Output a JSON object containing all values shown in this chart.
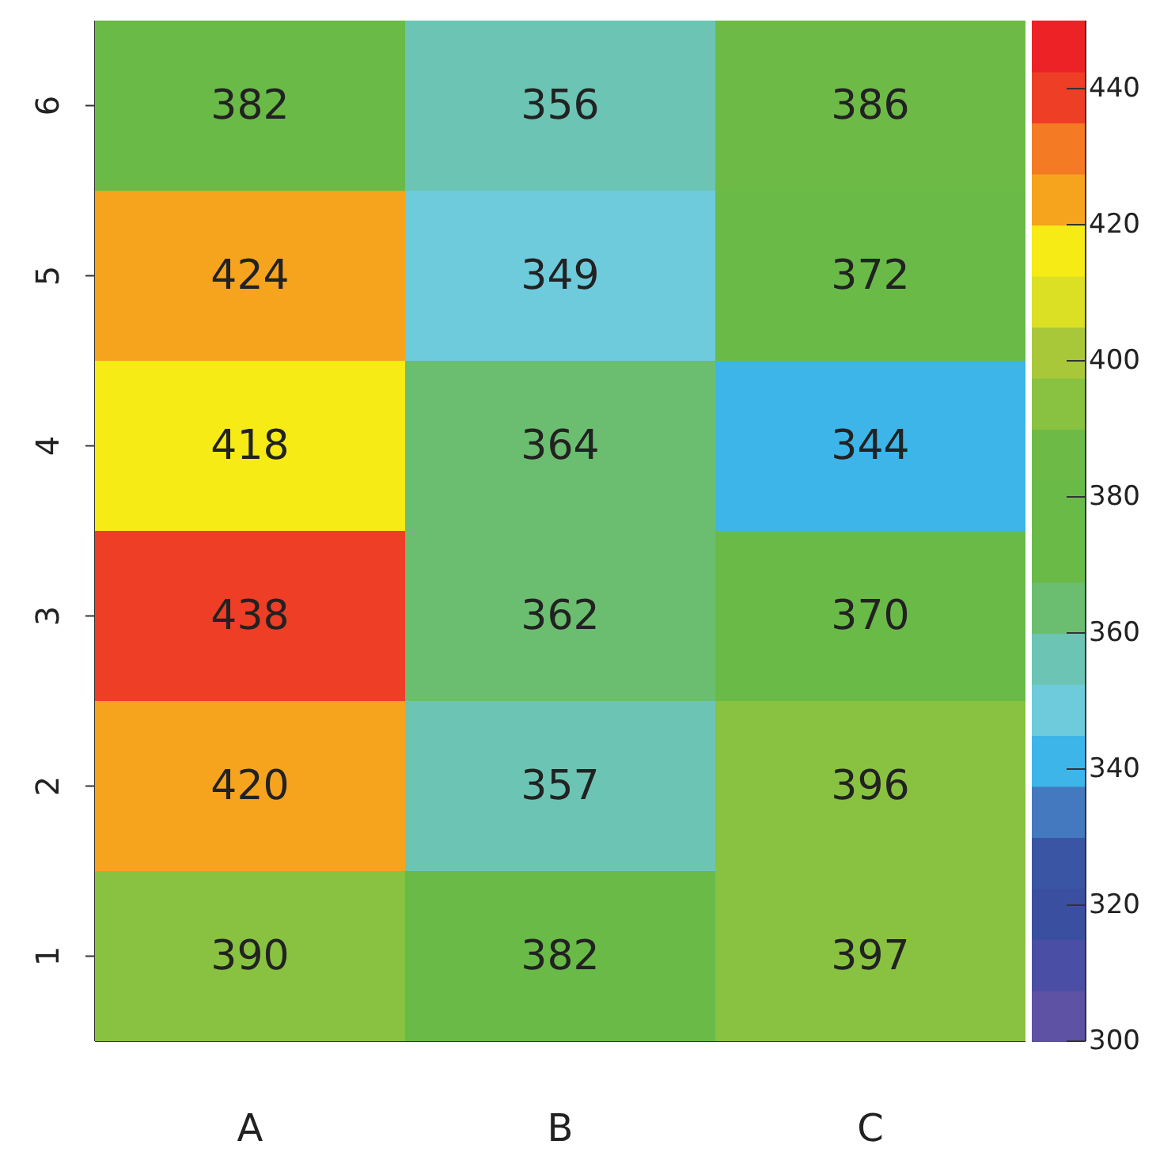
{
  "chart_data": {
    "type": "heatmap",
    "categories": [
      "A",
      "B",
      "C"
    ],
    "y_categories": [
      "6",
      "5",
      "4",
      "3",
      "2",
      "1"
    ],
    "cells": [
      [
        382,
        356,
        386
      ],
      [
        424,
        349,
        372
      ],
      [
        418,
        364,
        344
      ],
      [
        438,
        362,
        370
      ],
      [
        420,
        357,
        396
      ],
      [
        390,
        382,
        397
      ]
    ],
    "data_labels": true,
    "clim": [
      300,
      450
    ],
    "cticks": [
      300,
      320,
      340,
      360,
      380,
      400,
      420,
      440
    ]
  }
}
